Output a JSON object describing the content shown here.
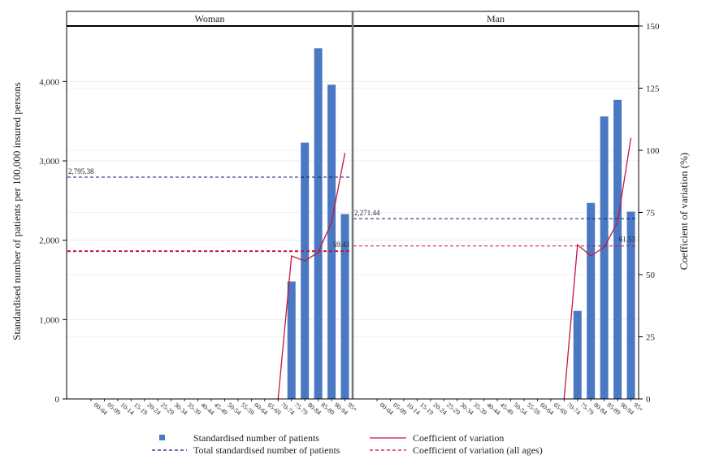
{
  "chart_data": {
    "type": "bar",
    "categories": [
      "00-04",
      "05-09",
      "10-14",
      "15-19",
      "20-24",
      "25-29",
      "30-34",
      "35-39",
      "40-44",
      "45-49",
      "50-54",
      "55-59",
      "60-64",
      "65-69",
      "70-74",
      "75-79",
      "80-84",
      "85-89",
      "90-94",
      "95+"
    ],
    "ylabel_left": "Standardised number of patients per 100,000 insured persons",
    "ylabel_right": "Coefficient of variation (%)",
    "ylim_left": [
      0,
      4700
    ],
    "ylim_right": [
      0,
      150
    ],
    "yticks_left": [
      0,
      1000,
      2000,
      3000,
      4000
    ],
    "yticks_left_labels": [
      "0",
      "1,000",
      "2,000",
      "3,000",
      "4,000"
    ],
    "yticks_right": [
      0,
      25,
      50,
      75,
      100,
      125,
      150
    ],
    "yticks_right_labels": [
      "0",
      "25",
      "50",
      "75",
      "100",
      "125",
      "150"
    ],
    "colors": {
      "bar": "#4a78c2",
      "cv": "#c8143c",
      "total": "#1a1a7a",
      "cv_all": "#c8143c"
    },
    "panels": [
      {
        "title": "Woman",
        "bars": [
          0,
          0,
          0,
          0,
          0,
          0,
          0,
          0,
          0,
          0,
          0,
          0,
          0,
          0,
          0,
          1480,
          3230,
          4420,
          3960,
          2330
        ],
        "cv": [
          null,
          null,
          null,
          null,
          null,
          null,
          null,
          null,
          null,
          null,
          null,
          null,
          null,
          null,
          0,
          57.5,
          55.5,
          59,
          71,
          99
        ],
        "total": 2795.38,
        "total_label": "2,795.38",
        "cv_all": 59.43,
        "cv_all_label": "59.43"
      },
      {
        "title": "Man",
        "bars": [
          0,
          0,
          0,
          0,
          0,
          0,
          0,
          0,
          0,
          0,
          0,
          0,
          0,
          0,
          0,
          1110,
          2470,
          3560,
          3770,
          2360
        ],
        "cv": [
          null,
          null,
          null,
          null,
          null,
          null,
          null,
          null,
          null,
          null,
          null,
          null,
          null,
          null,
          0,
          62,
          57.5,
          61,
          71,
          105
        ],
        "total": 2271.44,
        "total_label": "2,271.44",
        "cv_all": 61.53,
        "cv_all_label": "61.53"
      }
    ],
    "legend": {
      "bar": "Standardised number of patients",
      "cv": "Coefficient of variation",
      "total": "Total standardised number of patients",
      "cv_all": "Coefficient of variation (all ages)"
    }
  }
}
